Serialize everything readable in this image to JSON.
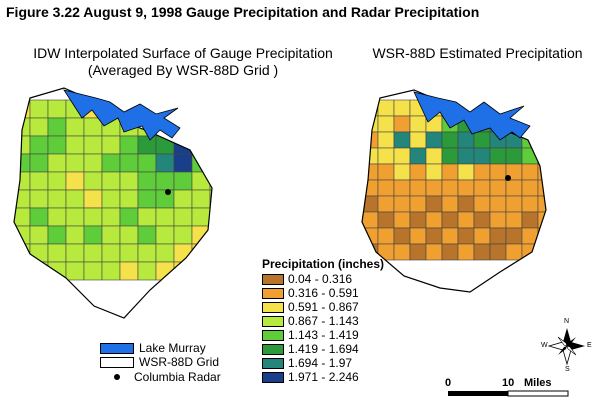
{
  "figure_title": "Figure 3.22  August 9, 1998 Gauge Precipitation and Radar Precipitation",
  "left_map": {
    "title_line1": "IDW Interpolated Surface of Gauge Precipitation",
    "title_line2": "(Averaged By WSR-88D Grid )"
  },
  "right_map": {
    "title": "WSR-88D Estimated Precipitation"
  },
  "legend": {
    "title": "Precipitation (inches)",
    "classes": [
      {
        "label": "0.04 - 0.316",
        "color": "#b8742a"
      },
      {
        "label": "0.316 - 0.591",
        "color": "#f0a030"
      },
      {
        "label": "0.591 - 0.867",
        "color": "#f5e24a"
      },
      {
        "label": "0.867 - 1.143",
        "color": "#b7ea3c"
      },
      {
        "label": "1.143 - 1.419",
        "color": "#5fcc3a"
      },
      {
        "label": "1.419 - 1.694",
        "color": "#2a9a3a"
      },
      {
        "label": "1.694 - 1.97",
        "color": "#23867a"
      },
      {
        "label": "1.971 - 2.246",
        "color": "#1a3f8a"
      }
    ]
  },
  "key": {
    "lake": {
      "label": "Lake Murray",
      "color": "#1f6fe6"
    },
    "grid": {
      "label": "WSR-88D Grid"
    },
    "radar": {
      "label": "Columbia Radar"
    }
  },
  "scale_bar": {
    "start": "0",
    "end": "10",
    "unit": "Miles"
  },
  "compass": {
    "n": "N",
    "s": "S",
    "e": "E",
    "w": "W"
  }
}
